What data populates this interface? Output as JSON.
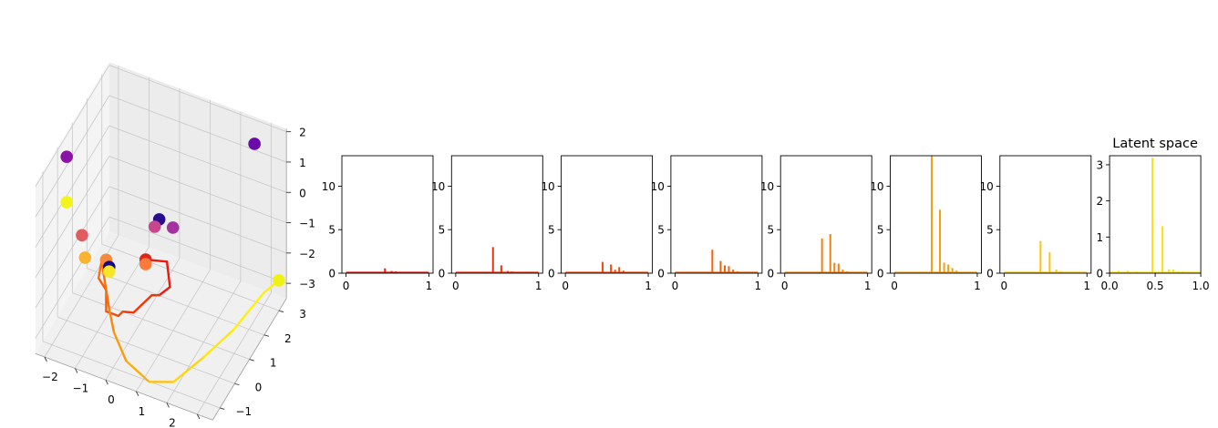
{
  "chart_data": [
    {
      "type": "scatter",
      "subtype": "3d-scatter-with-trajectory",
      "title": "",
      "x_ticks": [
        "−2",
        "−1",
        "0",
        "1",
        "2",
        "3"
      ],
      "y_ticks": [
        "−1",
        "0",
        "1",
        "2",
        "3"
      ],
      "z_ticks": [
        "−3",
        "−2",
        "−1",
        "0",
        "1",
        "2"
      ],
      "xlim": [
        -2.3,
        3.5
      ],
      "ylim": [
        -1.5,
        3.5
      ],
      "zlim": [
        -3.5,
        2.1
      ],
      "grid": true,
      "points": [
        {
          "x": -2.0,
          "y": 0.0,
          "z": 1.9,
          "color": "#8b14a4"
        },
        {
          "x": 2.6,
          "y": 3.2,
          "z": 1.5,
          "color": "#6a0aa8"
        },
        {
          "x": -2.0,
          "y": 0.0,
          "z": 0.4,
          "color": "#f2f41c"
        },
        {
          "x": -1.5,
          "y": 0.0,
          "z": -0.5,
          "color": "#e05c60"
        },
        {
          "x": -1.4,
          "y": 0.0,
          "z": -1.2,
          "color": "#fbb22e"
        },
        {
          "x": -1.0,
          "y": 0.6,
          "z": -1.6,
          "color": "#f58a3c"
        },
        {
          "x": -0.9,
          "y": 0.6,
          "z": -1.8,
          "color": "#130a8a"
        },
        {
          "x": -0.9,
          "y": 0.6,
          "z": -1.95,
          "color": "#f7e528"
        },
        {
          "x": 0.4,
          "y": 1.3,
          "z": -0.3,
          "color": "#2a0a8e"
        },
        {
          "x": 0.3,
          "y": 1.2,
          "z": -0.5,
          "color": "#c8478c"
        },
        {
          "x": 0.8,
          "y": 1.4,
          "z": -0.5,
          "color": "#a530a0"
        },
        {
          "x": 0.1,
          "y": 1.0,
          "z": -1.5,
          "color": "#e2231a"
        },
        {
          "x": 0.1,
          "y": 1.0,
          "z": -1.65,
          "color": "#fb7a3c"
        },
        {
          "x": 3.3,
          "y": 3.4,
          "z": -2.9,
          "color": "#f0f213"
        }
      ],
      "trajectory": [
        {
          "x": 0.1,
          "y": 1.0,
          "z": -1.5,
          "color": "#ea1a0e"
        },
        {
          "x": 0.7,
          "y": 1.2,
          "z": -1.5,
          "color": "#ea1a0e"
        },
        {
          "x": 0.8,
          "y": 1.2,
          "z": -2.3,
          "color": "#ea1a0e"
        },
        {
          "x": 0.5,
          "y": 1.1,
          "z": -2.6,
          "color": "#ea1a0e"
        },
        {
          "x": 0.3,
          "y": 1.0,
          "z": -2.6,
          "color": "#f2360a"
        },
        {
          "x": -0.2,
          "y": 0.8,
          "z": -3.2,
          "color": "#f2360a"
        },
        {
          "x": -0.5,
          "y": 0.7,
          "z": -3.2,
          "color": "#f2360a"
        },
        {
          "x": -0.6,
          "y": 0.6,
          "z": -3.3,
          "color": "#f34a0b"
        },
        {
          "x": -1.0,
          "y": 0.6,
          "z": -3.3,
          "color": "#f34a0b"
        },
        {
          "x": -1.0,
          "y": 0.6,
          "z": -2.6,
          "color": "#f55e0c"
        },
        {
          "x": -1.2,
          "y": 0.5,
          "z": -2.2,
          "color": "#f55e0c"
        },
        {
          "x": -1.1,
          "y": 0.5,
          "z": -1.6,
          "color": "#f7720c"
        },
        {
          "x": -0.8,
          "y": 0.4,
          "z": -3.0,
          "color": "#f7720c"
        },
        {
          "x": -0.6,
          "y": 0.3,
          "z": -3.6,
          "color": "#f8860d"
        },
        {
          "x": -0.1,
          "y": 0.1,
          "z": -4.2,
          "color": "#fa9a0e"
        },
        {
          "x": 0.7,
          "y": 0.0,
          "z": -4.5,
          "color": "#fbae0f"
        },
        {
          "x": 1.4,
          "y": 0.2,
          "z": -4.4,
          "color": "#fcc210"
        },
        {
          "x": 2.0,
          "y": 1.0,
          "z": -4.0,
          "color": "#fdd611"
        },
        {
          "x": 2.5,
          "y": 2.0,
          "z": -3.7,
          "color": "#fee612"
        },
        {
          "x": 3.0,
          "y": 3.0,
          "z": -3.1,
          "color": "#fff013"
        },
        {
          "x": 3.3,
          "y": 3.4,
          "z": -2.9,
          "color": "#fff013"
        }
      ]
    },
    {
      "type": "bar",
      "subtype": "spike-histogram",
      "title": "",
      "color": "#ea1a0e",
      "x_ticks": [
        "0",
        "1"
      ],
      "y_ticks": [
        "0",
        "5",
        "10"
      ],
      "xlim": [
        -0.05,
        1.05
      ],
      "ylim": [
        0,
        13.5
      ],
      "x": [
        0.2,
        0.47,
        0.55,
        0.6,
        0.65,
        0.7
      ],
      "values": [
        0.15,
        0.55,
        0.25,
        0.2,
        0.1,
        0.1
      ]
    },
    {
      "type": "bar",
      "subtype": "spike-histogram",
      "title": "",
      "color": "#f0300c",
      "x_ticks": [
        "0",
        "1"
      ],
      "y_ticks": [
        "0",
        "5",
        "10"
      ],
      "xlim": [
        -0.05,
        1.05
      ],
      "ylim": [
        0,
        13.5
      ],
      "x": [
        0.2,
        0.45,
        0.55,
        0.63,
        0.68,
        0.73
      ],
      "values": [
        0.1,
        3.0,
        0.9,
        0.25,
        0.2,
        0.1
      ]
    },
    {
      "type": "bar",
      "subtype": "spike-histogram",
      "title": "",
      "color": "#f24a0c",
      "x_ticks": [
        "0",
        "1"
      ],
      "y_ticks": [
        "0",
        "5",
        "10"
      ],
      "xlim": [
        -0.05,
        1.05
      ],
      "ylim": [
        0,
        13.5
      ],
      "x": [
        0.2,
        0.45,
        0.55,
        0.6,
        0.65,
        0.7,
        0.75
      ],
      "values": [
        0.1,
        1.3,
        1.0,
        0.4,
        0.7,
        0.3,
        0.1
      ]
    },
    {
      "type": "bar",
      "subtype": "spike-histogram",
      "title": "",
      "color": "#f2620c",
      "x_ticks": [
        "0",
        "1"
      ],
      "y_ticks": [
        "0",
        "5",
        "10"
      ],
      "xlim": [
        -0.05,
        1.05
      ],
      "ylim": [
        0,
        13.5
      ],
      "x": [
        0.2,
        0.45,
        0.55,
        0.6,
        0.65,
        0.7,
        0.75
      ],
      "values": [
        0.1,
        2.7,
        1.4,
        0.9,
        0.8,
        0.4,
        0.2
      ]
    },
    {
      "type": "bar",
      "subtype": "spike-histogram",
      "title": "",
      "color": "#f4800e",
      "x_ticks": [
        "0",
        "1"
      ],
      "y_ticks": [
        "0",
        "5",
        "10"
      ],
      "xlim": [
        -0.05,
        1.05
      ],
      "ylim": [
        0,
        13.5
      ],
      "x": [
        0.2,
        0.45,
        0.55,
        0.6,
        0.65,
        0.7,
        0.75
      ],
      "values": [
        0.1,
        4.0,
        4.5,
        1.2,
        1.1,
        0.4,
        0.2
      ]
    },
    {
      "type": "bar",
      "subtype": "spike-histogram",
      "title": "",
      "color": "#f59e0f",
      "x_ticks": [
        "0",
        "1"
      ],
      "y_ticks": [
        "0",
        "5",
        "10"
      ],
      "xlim": [
        -0.05,
        1.05
      ],
      "ylim": [
        0,
        13.5
      ],
      "x": [
        0.2,
        0.45,
        0.55,
        0.6,
        0.65,
        0.7,
        0.75
      ],
      "values": [
        0.1,
        13.5,
        7.3,
        1.2,
        1.0,
        0.6,
        0.3
      ]
    },
    {
      "type": "bar",
      "subtype": "spike-histogram",
      "title": "",
      "color": "#f7c410",
      "x_ticks": [
        "0",
        "1"
      ],
      "y_ticks": [
        "0",
        "5",
        "10"
      ],
      "xlim": [
        -0.05,
        1.05
      ],
      "ylim": [
        0,
        13.5
      ],
      "x": [
        0.2,
        0.44,
        0.55,
        0.63,
        0.68,
        0.73
      ],
      "values": [
        0.1,
        3.7,
        2.4,
        0.4,
        0.2,
        0.1
      ]
    },
    {
      "type": "bar",
      "subtype": "spike-histogram",
      "title": "Latent space",
      "color": "#f9e012",
      "x_ticks": [
        "0.0",
        "0.5",
        "1.0"
      ],
      "y_ticks": [
        "0",
        "1",
        "2",
        "3"
      ],
      "xlim": [
        0,
        1
      ],
      "ylim": [
        0,
        3.25
      ],
      "x": [
        0.1,
        0.2,
        0.3,
        0.47,
        0.58,
        0.65,
        0.7,
        0.75,
        0.8
      ],
      "values": [
        0.07,
        0.07,
        0.05,
        3.2,
        1.3,
        0.1,
        0.1,
        0.05,
        0.05
      ]
    }
  ]
}
